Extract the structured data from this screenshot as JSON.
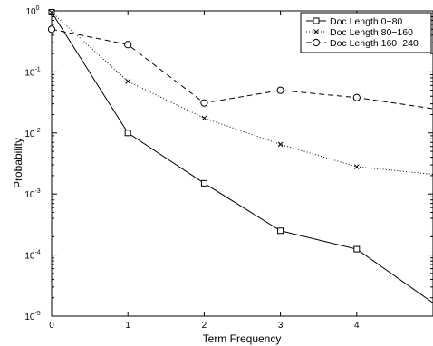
{
  "chart_data": {
    "type": "line",
    "title": "",
    "xlabel": "Term Frequency",
    "ylabel": "Probability",
    "xlim": [
      0,
      5
    ],
    "ylim": [
      1e-05,
      1
    ],
    "yscale": "log",
    "grid": false,
    "legend_position": "top-right",
    "x_ticks": [
      "0",
      "1",
      "2",
      "3",
      "4"
    ],
    "y_ticks": [
      {
        "base": "10",
        "exp": "0"
      },
      {
        "base": "10",
        "exp": "-1"
      },
      {
        "base": "10",
        "exp": "-2"
      },
      {
        "base": "10",
        "exp": "-3"
      },
      {
        "base": "10",
        "exp": "-4"
      },
      {
        "base": "10",
        "exp": "-5"
      }
    ],
    "series": [
      {
        "name": "Doc Length 0−80",
        "line_style": "solid",
        "marker": "square",
        "x": [
          0,
          1,
          2,
          3,
          4,
          5
        ],
        "y": [
          0.95,
          0.01,
          0.0015,
          0.00025,
          0.000125,
          1.65e-05
        ]
      },
      {
        "name": "Doc Length 80−160",
        "line_style": "dotted",
        "marker": "x",
        "x": [
          0,
          1,
          2,
          3,
          4,
          5
        ],
        "y": [
          0.95,
          0.07,
          0.0175,
          0.0065,
          0.0028,
          0.0021
        ]
      },
      {
        "name": "Doc Length 160−240",
        "line_style": "dashed",
        "marker": "circle",
        "x": [
          0,
          1,
          2,
          3,
          4,
          5
        ],
        "y": [
          0.5,
          0.28,
          0.031,
          0.05,
          0.038,
          0.025
        ]
      }
    ]
  }
}
